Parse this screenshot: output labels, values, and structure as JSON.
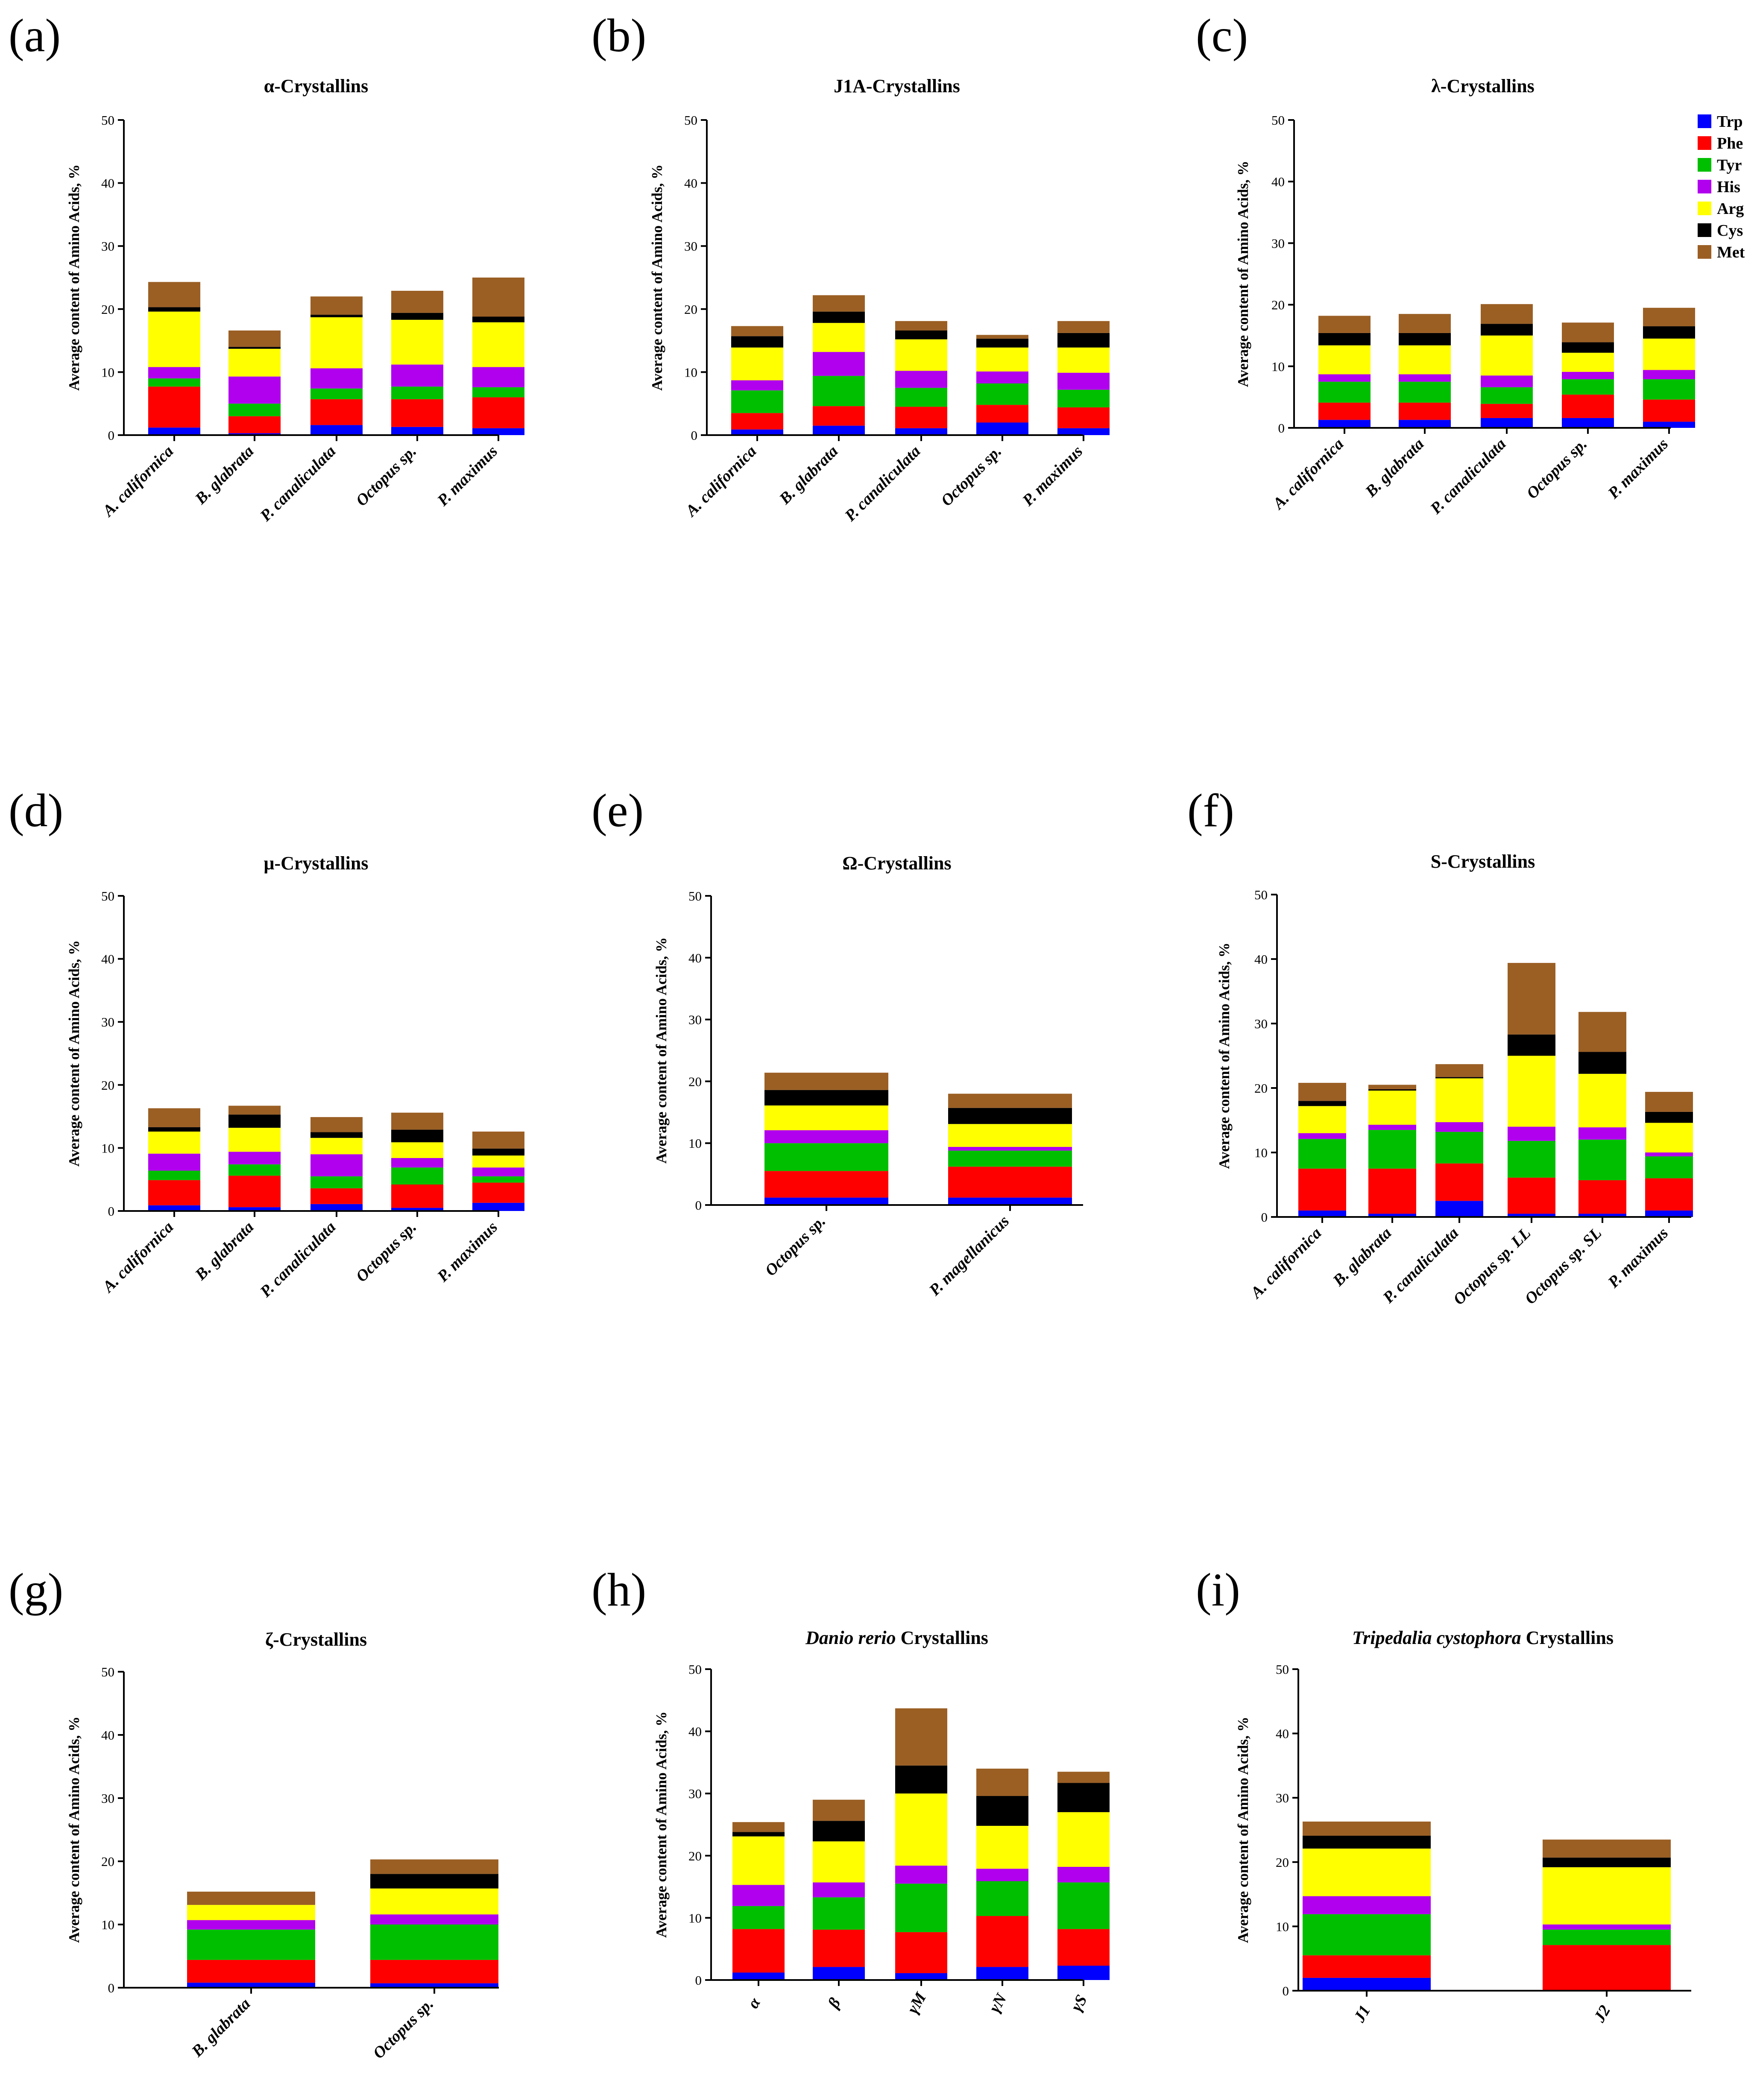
{
  "legend": [
    {
      "name": "Trp",
      "color": "#0000ff"
    },
    {
      "name": "Phe",
      "color": "#ff0000"
    },
    {
      "name": "Tyr",
      "color": "#00bf00"
    },
    {
      "name": "His",
      "color": "#b000ee"
    },
    {
      "name": "Arg",
      "color": "#ffff00"
    },
    {
      "name": "Cys",
      "color": "#000000"
    },
    {
      "name": "Met",
      "color": "#9b5f24"
    }
  ],
  "chart_data": [
    {
      "type": "bar",
      "stacked": true,
      "letter": "(a)",
      "title": "α-Crystallins",
      "title_parts": [
        {
          "t": "α-Crystallins",
          "i": false
        }
      ],
      "ylabel": "Average content of Amino Acids, %",
      "ylim": [
        0,
        50
      ],
      "yticks": [
        0,
        10,
        20,
        30,
        40,
        50
      ],
      "categories": [
        "A. californica",
        "B. glabrata",
        "P. canaliculata",
        "Octopus sp.",
        "P. maximus"
      ],
      "series": [
        {
          "name": "Trp",
          "values": [
            1.2,
            0.3,
            1.6,
            1.3,
            1.1
          ]
        },
        {
          "name": "Phe",
          "values": [
            6.5,
            2.7,
            4.1,
            4.4,
            4.9
          ]
        },
        {
          "name": "Tyr",
          "values": [
            1.3,
            2.0,
            1.7,
            2.0,
            1.6
          ]
        },
        {
          "name": "His",
          "values": [
            1.8,
            4.3,
            3.2,
            3.5,
            3.2
          ]
        },
        {
          "name": "Arg",
          "values": [
            8.8,
            4.4,
            8.1,
            7.1,
            7.1
          ]
        },
        {
          "name": "Cys",
          "values": [
            0.7,
            0.3,
            0.4,
            1.1,
            0.9
          ]
        },
        {
          "name": "Met",
          "values": [
            4.0,
            2.6,
            2.9,
            3.5,
            6.2
          ]
        }
      ]
    },
    {
      "type": "bar",
      "stacked": true,
      "letter": "(b)",
      "title": "J1A-Crystallins",
      "title_parts": [
        {
          "t": "J1A-Crystallins",
          "i": false
        }
      ],
      "ylabel": "Average content of Amino Acids, %",
      "ylim": [
        0,
        50
      ],
      "yticks": [
        0,
        10,
        20,
        30,
        40,
        50
      ],
      "categories": [
        "A. californica",
        "B. glabrata",
        "P. canaliculata",
        "Octopus sp.",
        "P. maximus"
      ],
      "series": [
        {
          "name": "Trp",
          "values": [
            0.9,
            1.5,
            1.1,
            2.0,
            1.1
          ]
        },
        {
          "name": "Phe",
          "values": [
            2.6,
            3.1,
            3.4,
            2.8,
            3.3
          ]
        },
        {
          "name": "Tyr",
          "values": [
            3.6,
            4.8,
            3.0,
            3.4,
            2.8
          ]
        },
        {
          "name": "His",
          "values": [
            1.6,
            3.8,
            2.7,
            1.9,
            2.7
          ]
        },
        {
          "name": "Arg",
          "values": [
            5.2,
            4.6,
            5.0,
            3.8,
            4.0
          ]
        },
        {
          "name": "Cys",
          "values": [
            1.8,
            1.8,
            1.4,
            1.4,
            2.3
          ]
        },
        {
          "name": "Met",
          "values": [
            1.6,
            2.6,
            1.5,
            0.6,
            1.9
          ]
        }
      ]
    },
    {
      "type": "bar",
      "stacked": true,
      "letter": "(c)",
      "title": "λ-Crystallins",
      "title_parts": [
        {
          "t": "λ-Crystallins",
          "i": false
        }
      ],
      "ylabel": "Average content of Amino Acids, %",
      "ylim": [
        0,
        50
      ],
      "yticks": [
        0,
        10,
        20,
        30,
        40,
        50
      ],
      "categories": [
        "A. californica",
        "B. glabrata",
        "P. canaliculata",
        "Octopus sp.",
        "P. maximus"
      ],
      "legend_position": "top-right",
      "series": [
        {
          "name": "Trp",
          "values": [
            1.3,
            1.3,
            1.6,
            1.6,
            1.0
          ]
        },
        {
          "name": "Phe",
          "values": [
            2.8,
            2.8,
            2.3,
            3.8,
            3.6
          ]
        },
        {
          "name": "Tyr",
          "values": [
            3.4,
            3.4,
            2.7,
            2.5,
            3.3
          ]
        },
        {
          "name": "His",
          "values": [
            1.2,
            1.2,
            1.9,
            1.2,
            1.5
          ]
        },
        {
          "name": "Arg",
          "values": [
            4.7,
            4.7,
            6.5,
            3.1,
            5.1
          ]
        },
        {
          "name": "Cys",
          "values": [
            2.0,
            2.0,
            1.9,
            1.7,
            2.0
          ]
        },
        {
          "name": "Met",
          "values": [
            2.8,
            3.1,
            3.2,
            3.2,
            3.0
          ]
        }
      ]
    },
    {
      "type": "bar",
      "stacked": true,
      "letter": "(d)",
      "title": "μ-Crystallins",
      "title_parts": [
        {
          "t": "μ-Crystallins",
          "i": false
        }
      ],
      "ylabel": "Average content of Amino Acids, %",
      "ylim": [
        0,
        50
      ],
      "yticks": [
        0,
        10,
        20,
        30,
        40,
        50
      ],
      "categories": [
        "A. californica",
        "B. glabrata",
        "P. canaliculata",
        "Octopus sp.",
        "P. maximus"
      ],
      "series": [
        {
          "name": "Trp",
          "values": [
            0.9,
            0.6,
            1.1,
            0.5,
            1.3
          ]
        },
        {
          "name": "Phe",
          "values": [
            4.0,
            5.0,
            2.5,
            3.7,
            3.2
          ]
        },
        {
          "name": "Tyr",
          "values": [
            1.5,
            1.8,
            1.9,
            2.7,
            1.0
          ]
        },
        {
          "name": "His",
          "values": [
            2.7,
            2.0,
            3.5,
            1.5,
            1.4
          ]
        },
        {
          "name": "Arg",
          "values": [
            3.5,
            3.8,
            2.6,
            2.5,
            1.9
          ]
        },
        {
          "name": "Cys",
          "values": [
            0.7,
            2.1,
            0.9,
            2.0,
            1.1
          ]
        },
        {
          "name": "Met",
          "values": [
            3.0,
            1.4,
            2.4,
            2.7,
            2.7
          ]
        }
      ]
    },
    {
      "type": "bar",
      "stacked": true,
      "letter": "(e)",
      "title": "Ω-Crystallins",
      "title_parts": [
        {
          "t": "Ω-Crystallins",
          "i": false
        }
      ],
      "ylabel": "Average content of Amino Acids, %",
      "ylim": [
        0,
        50
      ],
      "yticks": [
        0,
        10,
        20,
        30,
        40,
        50
      ],
      "categories": [
        "Octopus sp.",
        "P. magellanicus"
      ],
      "series": [
        {
          "name": "Trp",
          "values": [
            1.2,
            1.2
          ]
        },
        {
          "name": "Phe",
          "values": [
            4.3,
            5.0
          ]
        },
        {
          "name": "Tyr",
          "values": [
            4.5,
            2.6
          ]
        },
        {
          "name": "His",
          "values": [
            2.1,
            0.6
          ]
        },
        {
          "name": "Arg",
          "values": [
            4.0,
            3.7
          ]
        },
        {
          "name": "Cys",
          "values": [
            2.5,
            2.6
          ]
        },
        {
          "name": "Met",
          "values": [
            2.8,
            2.3
          ]
        }
      ]
    },
    {
      "type": "bar",
      "stacked": true,
      "letter": "(f)",
      "title": "S-Crystallins",
      "title_parts": [
        {
          "t": "S-Crystallins",
          "i": false
        }
      ],
      "ylabel": "Average content of Amino Acids, %",
      "ylim": [
        0,
        50
      ],
      "yticks": [
        0,
        10,
        20,
        30,
        40,
        50
      ],
      "categories": [
        "A. californica",
        "B. glabrata",
        "P. canaliculata",
        "Octopus sp. LL",
        "Octopus sp. SL",
        "P. maximus"
      ],
      "series": [
        {
          "name": "Trp",
          "values": [
            1.0,
            0.5,
            2.5,
            0.5,
            0.5,
            1.0
          ]
        },
        {
          "name": "Phe",
          "values": [
            6.5,
            7.0,
            5.8,
            5.6,
            5.2,
            5.0
          ]
        },
        {
          "name": "Tyr",
          "values": [
            4.6,
            6.0,
            4.9,
            5.7,
            6.3,
            3.4
          ]
        },
        {
          "name": "His",
          "values": [
            0.9,
            0.8,
            1.5,
            2.2,
            1.9,
            0.6
          ]
        },
        {
          "name": "Arg",
          "values": [
            4.2,
            5.3,
            6.8,
            11.0,
            8.3,
            4.6
          ]
        },
        {
          "name": "Cys",
          "values": [
            0.8,
            0.2,
            0.2,
            3.3,
            3.4,
            1.7
          ]
        },
        {
          "name": "Met",
          "values": [
            2.8,
            0.7,
            2.0,
            11.1,
            6.2,
            3.1
          ]
        }
      ]
    },
    {
      "type": "bar",
      "stacked": true,
      "letter": "(g)",
      "title": "ζ-Crystallins",
      "title_parts": [
        {
          "t": "ζ-Crystallins",
          "i": false
        }
      ],
      "ylabel": "Average content of Amino Acids, %",
      "ylim": [
        0,
        50
      ],
      "yticks": [
        0,
        10,
        20,
        30,
        40,
        50
      ],
      "categories": [
        "B. glabrata",
        "Octopus sp."
      ],
      "series": [
        {
          "name": "Trp",
          "values": [
            0.8,
            0.7
          ]
        },
        {
          "name": "Phe",
          "values": [
            3.6,
            3.7
          ]
        },
        {
          "name": "Tyr",
          "values": [
            4.8,
            5.6
          ]
        },
        {
          "name": "His",
          "values": [
            1.5,
            1.6
          ]
        },
        {
          "name": "Arg",
          "values": [
            2.4,
            4.1
          ]
        },
        {
          "name": "Cys",
          "values": [
            0.0,
            2.3
          ]
        },
        {
          "name": "Met",
          "values": [
            2.1,
            2.3
          ]
        }
      ]
    },
    {
      "type": "bar",
      "stacked": true,
      "letter": "(h)",
      "title": "Danio rerio Crystallins",
      "title_parts": [
        {
          "t": "Danio rerio",
          "i": true
        },
        {
          "t": " Crystallins",
          "i": false
        }
      ],
      "ylabel": "Average content of Amino Acids, %",
      "ylim": [
        0,
        50
      ],
      "yticks": [
        0,
        10,
        20,
        30,
        40,
        50
      ],
      "categories": [
        "α",
        "β",
        "γM",
        "γN",
        "γS"
      ],
      "series": [
        {
          "name": "Trp",
          "values": [
            1.2,
            2.1,
            1.1,
            2.1,
            2.3
          ]
        },
        {
          "name": "Phe",
          "values": [
            7.0,
            6.0,
            6.6,
            8.2,
            5.9
          ]
        },
        {
          "name": "Tyr",
          "values": [
            3.7,
            5.2,
            7.8,
            5.6,
            7.5
          ]
        },
        {
          "name": "His",
          "values": [
            3.4,
            2.4,
            2.9,
            2.0,
            2.5
          ]
        },
        {
          "name": "Arg",
          "values": [
            7.8,
            6.6,
            11.6,
            6.9,
            8.8
          ]
        },
        {
          "name": "Cys",
          "values": [
            0.7,
            3.3,
            4.5,
            4.8,
            4.7
          ]
        },
        {
          "name": "Met",
          "values": [
            1.6,
            3.4,
            9.2,
            4.4,
            1.8
          ]
        }
      ]
    },
    {
      "type": "bar",
      "stacked": true,
      "letter": "(i)",
      "title": "Tripedalia cystophora Crystallins",
      "title_parts": [
        {
          "t": "Tripedalia cystophora",
          "i": true
        },
        {
          "t": " Crystallins",
          "i": false
        }
      ],
      "ylabel": "Average content of Amino Acids, %",
      "ylim": [
        0,
        50
      ],
      "yticks": [
        0,
        10,
        20,
        30,
        40,
        50
      ],
      "categories": [
        "J1",
        "J2"
      ],
      "series": [
        {
          "name": "Trp",
          "values": [
            2.0,
            0.0
          ]
        },
        {
          "name": "Phe",
          "values": [
            3.5,
            7.1
          ]
        },
        {
          "name": "Tyr",
          "values": [
            6.4,
            2.4
          ]
        },
        {
          "name": "His",
          "values": [
            2.8,
            0.8
          ]
        },
        {
          "name": "Arg",
          "values": [
            7.4,
            8.9
          ]
        },
        {
          "name": "Cys",
          "values": [
            2.0,
            1.5
          ]
        },
        {
          "name": "Met",
          "values": [
            2.2,
            2.8
          ]
        }
      ]
    }
  ]
}
